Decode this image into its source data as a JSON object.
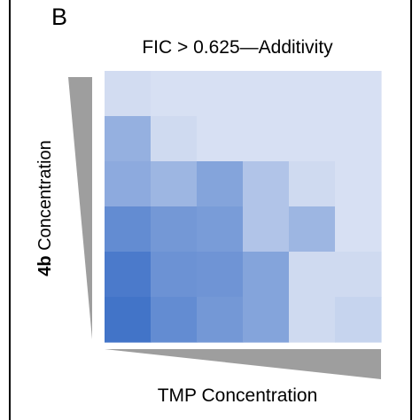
{
  "panel_label": "B",
  "chart_data": {
    "type": "heatmap",
    "title": "FIC > 0.625—Additivity",
    "ylabel_bold": "4b",
    "ylabel_rest": " Concentration",
    "xlabel": "TMP Concentration",
    "color_low": "#dfe6f5",
    "color_high": "#3a6ec6",
    "values": [
      [
        0.08,
        0.05,
        0.05,
        0.05,
        0.05,
        0.05
      ],
      [
        0.45,
        0.1,
        0.05,
        0.05,
        0.05,
        0.05
      ],
      [
        0.5,
        0.4,
        0.55,
        0.28,
        0.1,
        0.05
      ],
      [
        0.75,
        0.65,
        0.62,
        0.28,
        0.4,
        0.05
      ],
      [
        0.9,
        0.7,
        0.68,
        0.55,
        0.1,
        0.1
      ],
      [
        0.95,
        0.75,
        0.65,
        0.55,
        0.1,
        0.15
      ]
    ]
  }
}
